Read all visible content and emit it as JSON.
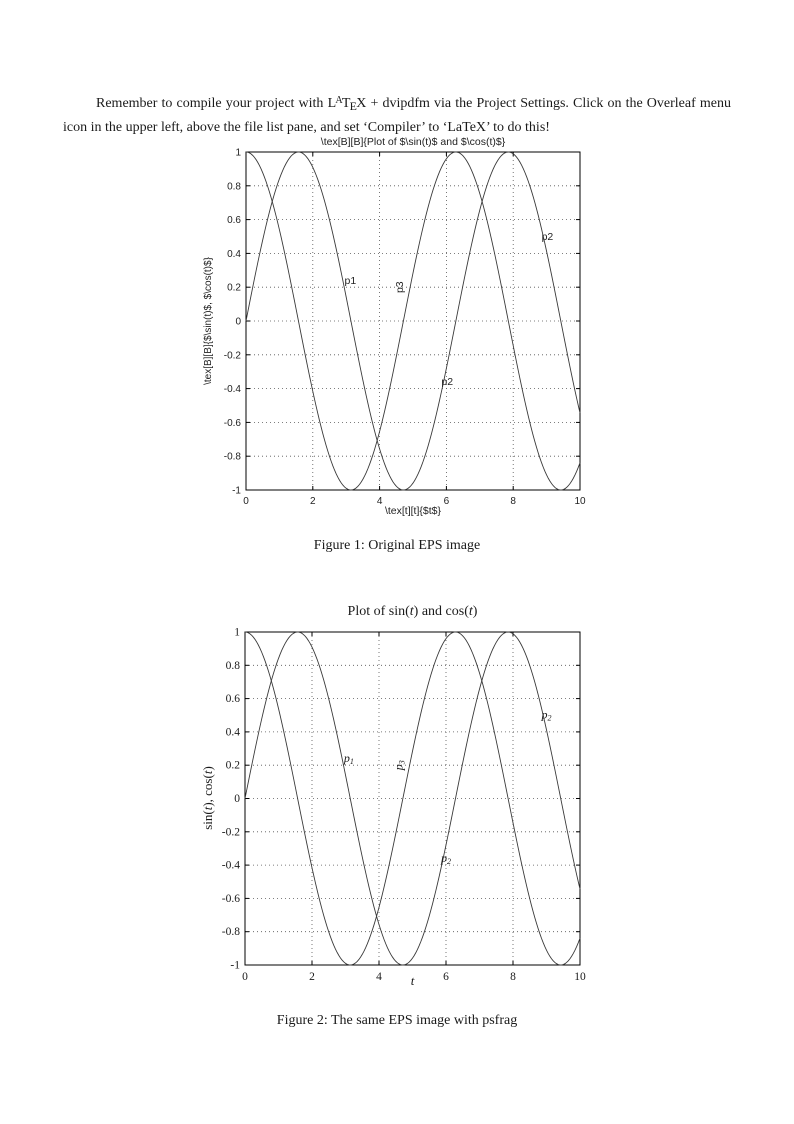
{
  "document": {
    "paragraph_rich": [
      {
        "t": "Remember to compile your project with "
      },
      {
        "t": "L"
      },
      {
        "t": "A",
        "cls": "lx-sup"
      },
      {
        "t": "T"
      },
      {
        "t": "E",
        "cls": "lx-sub"
      },
      {
        "t": "X + dvipdfm via the Project Settings. Click on the Overleaf menu icon in the upper left, above the file list pane, and set ‘Compiler’ to ‘LaTeX’ to do this!"
      }
    ],
    "caption1": "Figure 1: Original EPS image",
    "caption2": "Figure 2: The same EPS image with psfrag"
  },
  "chart_data": [
    {
      "id": "fig1",
      "type": "line",
      "title": "\\tex[B][B]{Plot of $\\sin(t)$ and $\\cos(t)$}",
      "xlabel": "\\tex[t][t]{$t$}",
      "ylabel": "\\tex[B][B]{$\\sin(t)$, $\\cos(t)$}",
      "xlim": [
        0,
        10
      ],
      "ylim": [
        -1,
        1
      ],
      "grid": true,
      "x_range": [
        0,
        10
      ],
      "sample_step": 0.05,
      "xticks": [
        {
          "v": 0,
          "label": "0"
        },
        {
          "v": 2,
          "label": "2"
        },
        {
          "v": 4,
          "label": "4"
        },
        {
          "v": 6,
          "label": "6"
        },
        {
          "v": 8,
          "label": "8"
        },
        {
          "v": 10,
          "label": "10"
        }
      ],
      "yticks": [
        {
          "v": 1,
          "label": "1"
        },
        {
          "v": 0.8,
          "label": "0.8"
        },
        {
          "v": 0.6,
          "label": "0.6"
        },
        {
          "v": 0.4,
          "label": "0.4"
        },
        {
          "v": 0.2,
          "label": "0.2"
        },
        {
          "v": 0,
          "label": "0"
        },
        {
          "v": -0.2,
          "label": "-0.2"
        },
        {
          "v": -0.4,
          "label": "-0.4"
        },
        {
          "v": -0.6,
          "label": "-0.6"
        },
        {
          "v": -0.8,
          "label": "-0.8"
        },
        {
          "v": -1,
          "label": "-1"
        }
      ],
      "series": [
        {
          "name": "sin(t)",
          "fn": "sin"
        },
        {
          "name": "cos(t)",
          "fn": "cos"
        }
      ],
      "annotations": [
        {
          "label": "p1",
          "sub": "",
          "x": 2.95,
          "y": 0.22,
          "rotate": 0
        },
        {
          "label": "p3",
          "sub": "",
          "x": 4.7,
          "y": 0.2,
          "rotate": -90
        },
        {
          "label": "p2",
          "sub": "",
          "x": 5.85,
          "y": -0.38,
          "rotate": 0
        },
        {
          "label": "p2",
          "sub": "",
          "x": 8.85,
          "y": 0.48,
          "rotate": 0
        }
      ]
    },
    {
      "id": "fig2",
      "type": "line",
      "title": "Plot of sin(t) and cos(t)",
      "title_rich": [
        {
          "t": "Plot of sin("
        },
        {
          "t": "t",
          "cls": "it"
        },
        {
          "t": ") and cos("
        },
        {
          "t": "t",
          "cls": "it"
        },
        {
          "t": ")"
        }
      ],
      "xlabel": "t",
      "xlabel_rich": [
        {
          "t": "t",
          "cls": "it"
        }
      ],
      "ylabel": "sin(t), cos(t)",
      "ylabel_rich": [
        {
          "t": "sin("
        },
        {
          "t": "t",
          "cls": "it"
        },
        {
          "t": "), cos("
        },
        {
          "t": "t",
          "cls": "it"
        },
        {
          "t": ")"
        }
      ],
      "xlim": [
        0,
        10
      ],
      "ylim": [
        -1,
        1
      ],
      "grid": true,
      "x_range": [
        0,
        10
      ],
      "sample_step": 0.05,
      "xticks": [
        {
          "v": 0,
          "label": "0"
        },
        {
          "v": 2,
          "label": "2"
        },
        {
          "v": 4,
          "label": "4"
        },
        {
          "v": 6,
          "label": "6"
        },
        {
          "v": 8,
          "label": "8"
        },
        {
          "v": 10,
          "label": "10"
        }
      ],
      "yticks": [
        {
          "v": 1,
          "label": "1"
        },
        {
          "v": 0.8,
          "label": "0.8"
        },
        {
          "v": 0.6,
          "label": "0.6"
        },
        {
          "v": 0.4,
          "label": "0.4"
        },
        {
          "v": 0.2,
          "label": "0.2"
        },
        {
          "v": 0,
          "label": "0"
        },
        {
          "v": -0.2,
          "label": "-0.2"
        },
        {
          "v": -0.4,
          "label": "-0.4"
        },
        {
          "v": -0.6,
          "label": "-0.6"
        },
        {
          "v": -0.8,
          "label": "-0.8"
        },
        {
          "v": -1,
          "label": "-1"
        }
      ],
      "series": [
        {
          "name": "sin(t)",
          "fn": "sin"
        },
        {
          "name": "cos(t)",
          "fn": "cos"
        }
      ],
      "annotations": [
        {
          "label": "p",
          "sub": "1",
          "x": 2.95,
          "y": 0.22,
          "rotate": 0
        },
        {
          "label": "p",
          "sub": "3",
          "x": 4.7,
          "y": 0.2,
          "rotate": -90
        },
        {
          "label": "p",
          "sub": "2",
          "x": 5.85,
          "y": -0.38,
          "rotate": 0
        },
        {
          "label": "p",
          "sub": "2",
          "x": 8.85,
          "y": 0.48,
          "rotate": 0
        }
      ]
    }
  ]
}
